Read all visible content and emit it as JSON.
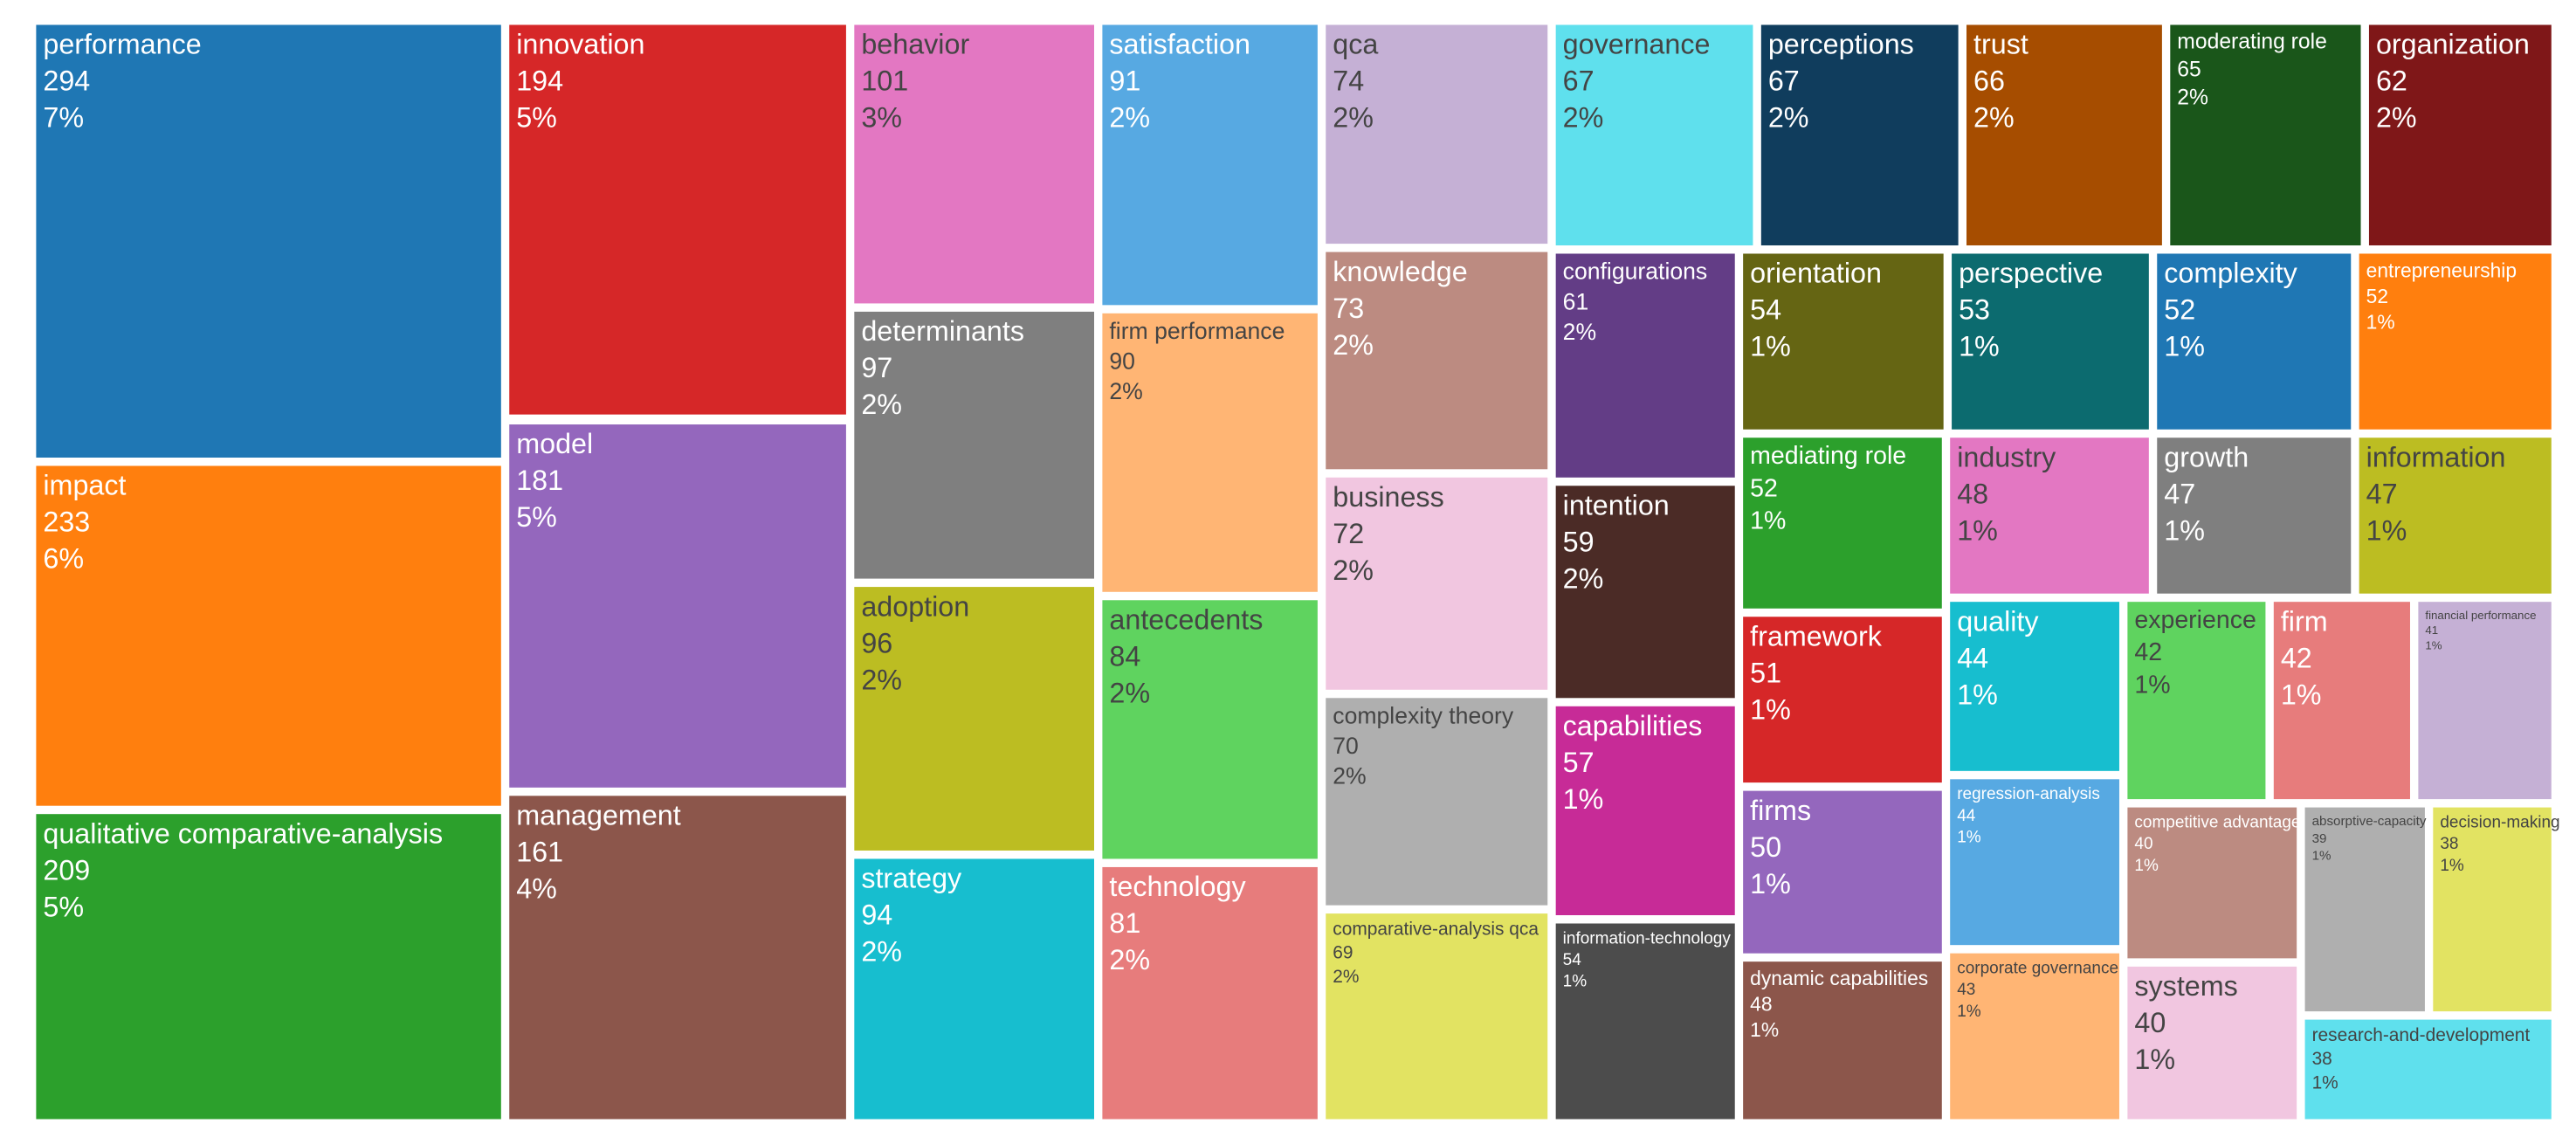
{
  "chart_data": {
    "type": "treemap",
    "categories": [
      "performance",
      "impact",
      "qualitative comparative-analysis",
      "innovation",
      "model",
      "management",
      "behavior",
      "determinants",
      "adoption",
      "strategy",
      "satisfaction",
      "firm performance",
      "antecedents",
      "technology",
      "qca",
      "knowledge",
      "business",
      "complexity theory",
      "comparative-analysis qca",
      "governance",
      "perceptions",
      "trust",
      "moderating role",
      "organization",
      "configurations",
      "intention",
      "capabilities",
      "information-technology",
      "orientation",
      "perspective",
      "complexity",
      "entrepreneurship",
      "mediating role",
      "framework",
      "firms",
      "dynamic capabilities",
      "industry",
      "growth",
      "information",
      "quality",
      "regression-analysis",
      "corporate governance",
      "experience",
      "firm",
      "financial performance",
      "competitive advantage",
      "systems",
      "absorptive-capacity",
      "decision-making",
      "research-and-development"
    ],
    "values": [
      294,
      233,
      209,
      194,
      181,
      161,
      101,
      97,
      96,
      94,
      91,
      90,
      84,
      81,
      74,
      73,
      72,
      70,
      69,
      67,
      67,
      66,
      65,
      62,
      61,
      59,
      57,
      54,
      54,
      53,
      52,
      52,
      52,
      51,
      50,
      48,
      48,
      47,
      47,
      44,
      44,
      43,
      42,
      42,
      41,
      40,
      40,
      39,
      38,
      38
    ],
    "shares": [
      "7%",
      "6%",
      "5%",
      "5%",
      "5%",
      "4%",
      "3%",
      "2%",
      "2%",
      "2%",
      "2%",
      "2%",
      "2%",
      "2%",
      "2%",
      "2%",
      "2%",
      "2%",
      "2%",
      "2%",
      "2%",
      "2%",
      "2%",
      "2%",
      "2%",
      "2%",
      "1%",
      "1%",
      "1%",
      "1%",
      "1%",
      "1%",
      "1%",
      "1%",
      "1%",
      "1%",
      "1%",
      "1%",
      "1%",
      "1%",
      "1%",
      "1%",
      "1%",
      "1%",
      "1%",
      "1%",
      "1%",
      "1%",
      "1%",
      "1%"
    ],
    "colors": [
      "#1f77b4",
      "#ff7f0e",
      "#2ca02c",
      "#d62728",
      "#9467bd",
      "#8c564b",
      "#e377c2",
      "#7f7f7f",
      "#bcbd22",
      "#17becf",
      "#57a9e2",
      "#ffb574",
      "#5fd35f",
      "#e77c7c",
      "#c5b0d5",
      "#bc8b81",
      "#f1c6e0",
      "#afafaf",
      "#e2e362",
      "#5fe0ed",
      "#103d5d",
      "#a64d00",
      "#1a561a",
      "#7f1718",
      "#633d86",
      "#4b2b26",
      "#c72b97",
      "#4c4c4c",
      "#656513",
      "#0c6b6f",
      "#1f77b4",
      "#ff7f0e",
      "#2ca02c",
      "#d62728",
      "#9467bd",
      "#8c564b",
      "#e377c2",
      "#7f7f7f",
      "#bcbd22",
      "#17becf",
      "#57a9e2",
      "#ffb574",
      "#5fd35f",
      "#e77c7c",
      "#c5b0d5",
      "#bc8b81",
      "#f1c6e0",
      "#afafaf",
      "#e2e362",
      "#5fe0ed"
    ]
  }
}
